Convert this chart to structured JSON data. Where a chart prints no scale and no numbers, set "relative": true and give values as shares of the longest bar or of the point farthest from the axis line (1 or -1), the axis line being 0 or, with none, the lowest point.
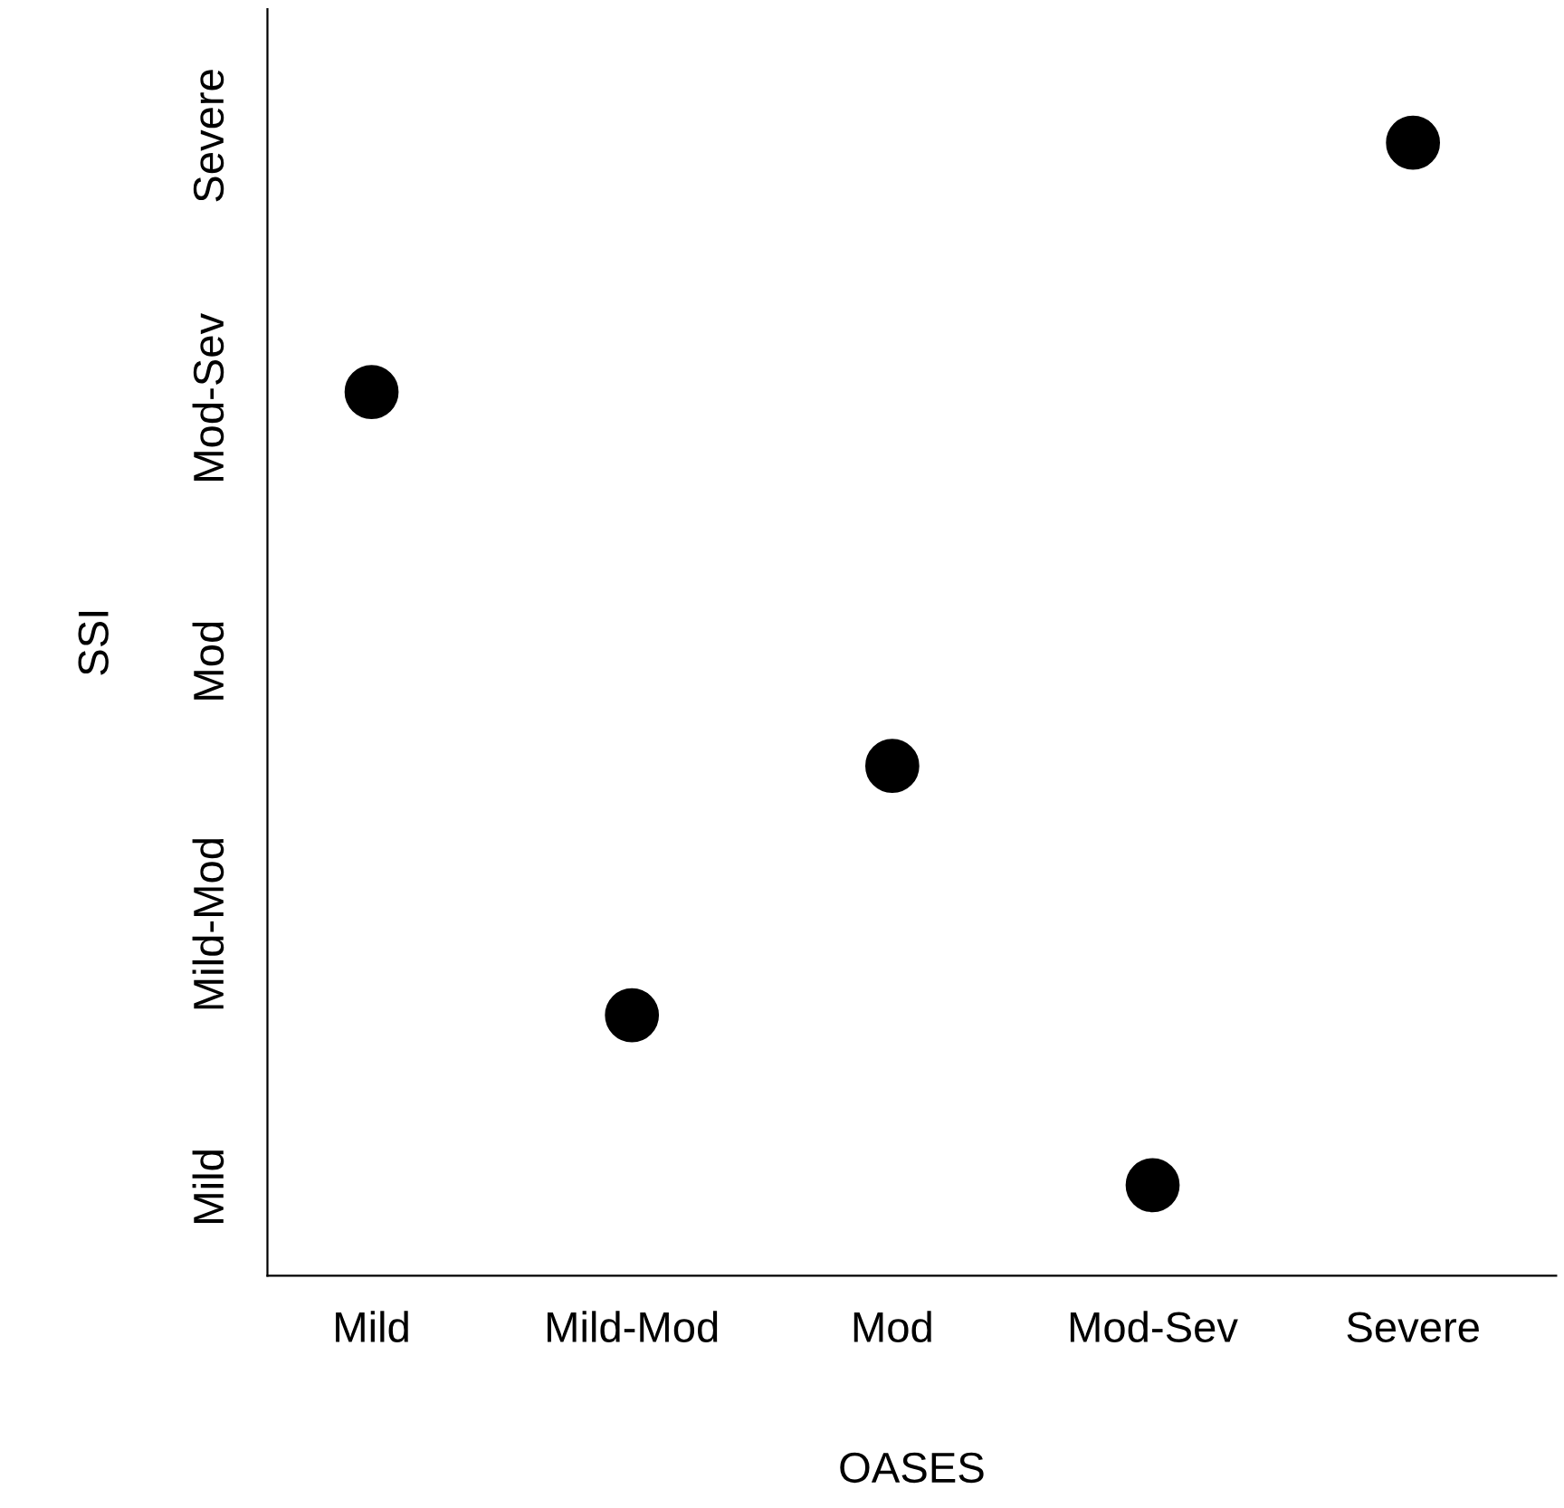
{
  "chart_data": {
    "type": "scatter",
    "xlabel": "OASES",
    "ylabel": "SSI",
    "categories": [
      "Mild",
      "Mild-Mod",
      "Mod",
      "Mod-Sev",
      "Severe"
    ],
    "y_categories": [
      "Severe",
      "Mod-Sev",
      "Mod",
      "Mild-Mod",
      "Mild"
    ],
    "relative": true,
    "values": [
      0.78,
      0.23,
      0.45,
      0.08,
      1
    ],
    "color": "#000000",
    "marker": "circle"
  }
}
